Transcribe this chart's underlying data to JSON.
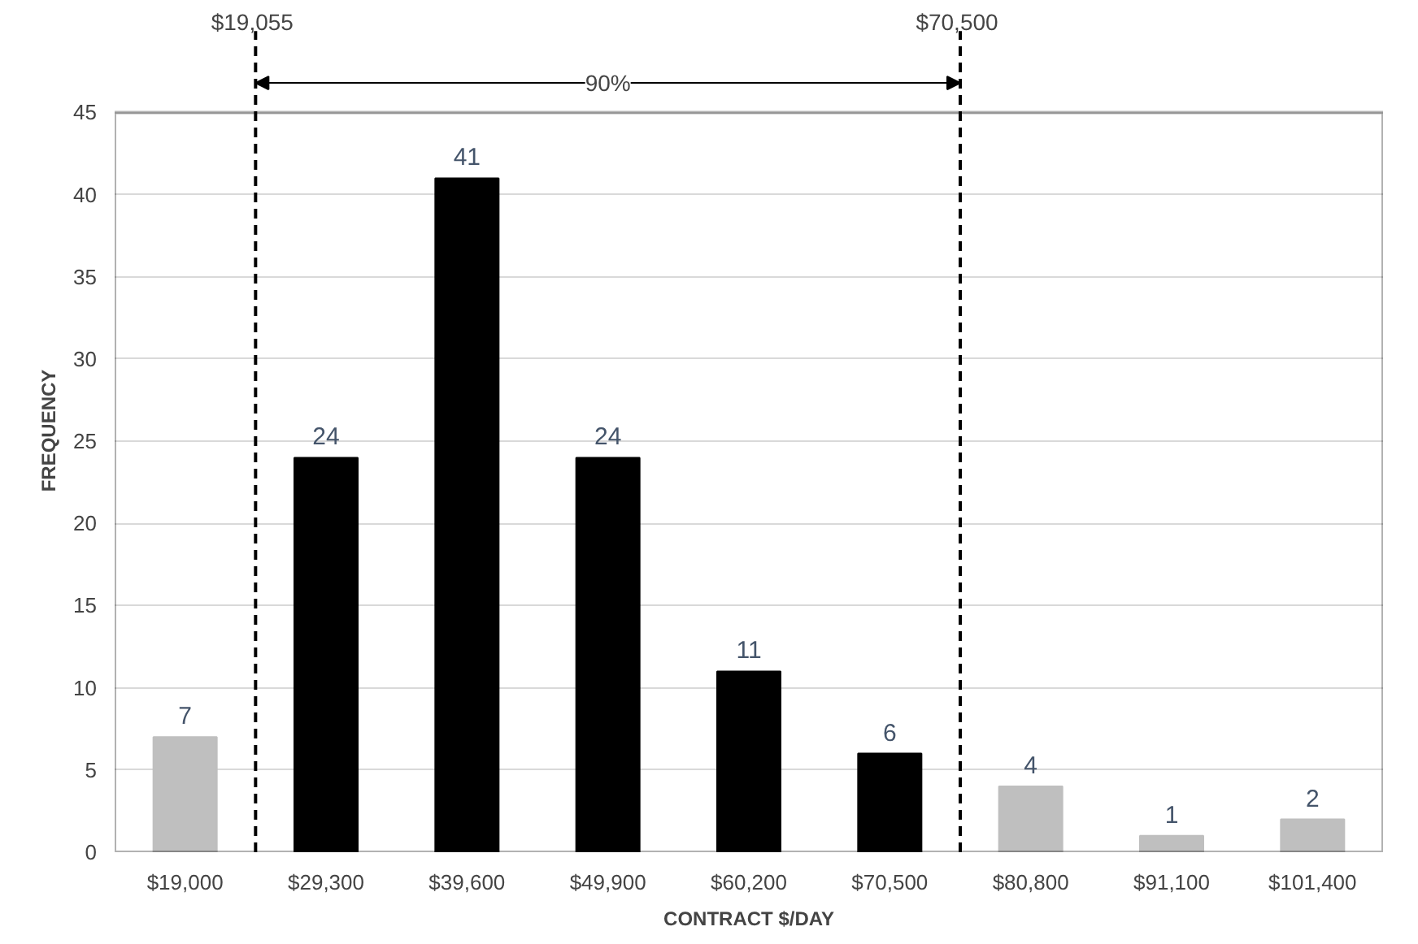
{
  "chart_data": {
    "type": "bar",
    "xlabel": "CONTRACT $/DAY",
    "ylabel": "FREQUENCY",
    "categories": [
      "$19,000",
      "$29,300",
      "$39,600",
      "$49,900",
      "$60,200",
      "$70,500",
      "$80,800",
      "$91,100",
      "$101,400"
    ],
    "values": [
      7,
      24,
      41,
      24,
      11,
      6,
      4,
      1,
      2
    ],
    "colors": [
      "#bfbfbf",
      "#000000",
      "#000000",
      "#000000",
      "#000000",
      "#000000",
      "#bfbfbf",
      "#bfbfbf",
      "#bfbfbf"
    ],
    "data_labels": true,
    "ylim": [
      0,
      45
    ],
    "yticks": [
      0,
      5,
      10,
      15,
      20,
      25,
      30,
      35,
      40,
      45
    ],
    "grid": "y",
    "annotations": [
      "$19,055",
      "$70,500",
      "90%"
    ]
  }
}
